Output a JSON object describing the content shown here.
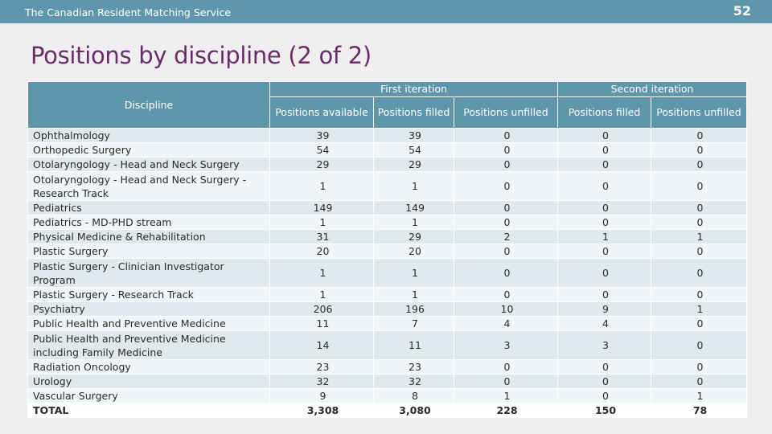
{
  "header": {
    "organization": "The Canadian Resident Matching Service",
    "slide_number": "52"
  },
  "title": "Positions by discipline (2 of 2)",
  "table": {
    "discipline_header": "Discipline",
    "group_headers": [
      "First iteration",
      "Second iteration"
    ],
    "sub_headers": [
      "Positions available",
      "Positions filled",
      "Positions unfilled",
      "Positions filled",
      "Positions unfilled"
    ],
    "rows": [
      {
        "discipline": "Ophthalmology",
        "values": [
          "39",
          "39",
          "0",
          "0",
          "0"
        ]
      },
      {
        "discipline": "Orthopedic Surgery",
        "values": [
          "54",
          "54",
          "0",
          "0",
          "0"
        ]
      },
      {
        "discipline": "Otolaryngology - Head and Neck Surgery",
        "values": [
          "29",
          "29",
          "0",
          "0",
          "0"
        ]
      },
      {
        "discipline": "Otolaryngology - Head and Neck Surgery - Research Track",
        "values": [
          "1",
          "1",
          "0",
          "0",
          "0"
        ]
      },
      {
        "discipline": "Pediatrics",
        "values": [
          "149",
          "149",
          "0",
          "0",
          "0"
        ]
      },
      {
        "discipline": "Pediatrics - MD-PHD stream",
        "values": [
          "1",
          "1",
          "0",
          "0",
          "0"
        ]
      },
      {
        "discipline": "Physical Medicine & Rehabilitation",
        "values": [
          "31",
          "29",
          "2",
          "1",
          "1"
        ]
      },
      {
        "discipline": "Plastic Surgery",
        "values": [
          "20",
          "20",
          "0",
          "0",
          "0"
        ]
      },
      {
        "discipline": "Plastic Surgery - Clinician Investigator Program",
        "values": [
          "1",
          "1",
          "0",
          "0",
          "0"
        ]
      },
      {
        "discipline": "Plastic Surgery - Research Track",
        "values": [
          "1",
          "1",
          "0",
          "0",
          "0"
        ]
      },
      {
        "discipline": "Psychiatry",
        "values": [
          "206",
          "196",
          "10",
          "9",
          "1"
        ]
      },
      {
        "discipline": "Public Health and Preventive Medicine",
        "values": [
          "11",
          "7",
          "4",
          "4",
          "0"
        ]
      },
      {
        "discipline": "Public Health and Preventive Medicine including Family Medicine",
        "values": [
          "14",
          "11",
          "3",
          "3",
          "0"
        ]
      },
      {
        "discipline": "Radiation Oncology",
        "values": [
          "23",
          "23",
          "0",
          "0",
          "0"
        ]
      },
      {
        "discipline": "Urology",
        "values": [
          "32",
          "32",
          "0",
          "0",
          "0"
        ]
      },
      {
        "discipline": "Vascular Surgery",
        "values": [
          "9",
          "8",
          "1",
          "0",
          "1"
        ]
      }
    ],
    "total": {
      "label": "TOTAL",
      "values": [
        "3,308",
        "3,080",
        "228",
        "150",
        "78"
      ]
    }
  },
  "colors": {
    "header_bg": "#5e96ab",
    "title": "#6b2c6a",
    "row_odd": "#dfe9ee",
    "row_even": "#f0f5f7",
    "background": "#efefef"
  }
}
